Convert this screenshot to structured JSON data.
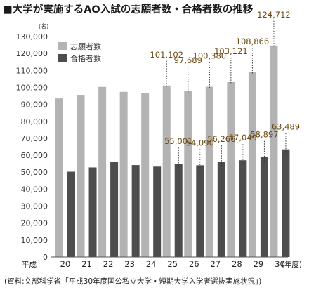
{
  "chart_data": {
    "type": "bar",
    "title": "■大学が実施するAO入試の志願者数・合格者数の推移",
    "unit": "(名)",
    "x_prefix": "平成",
    "x_suffix": "(年度)",
    "categories": [
      "20",
      "21",
      "22",
      "23",
      "24",
      "25",
      "26",
      "27",
      "28",
      "29",
      "30"
    ],
    "series": [
      {
        "name": "志願者数",
        "color": "#b3b3b3",
        "values": [
          93500,
          95200,
          100300,
          97400,
          96800,
          101102,
          97689,
          100380,
          103121,
          108866,
          124712
        ],
        "labels": [
          "",
          "",
          "",
          "",
          "",
          "101,102",
          "97,689",
          "100,380",
          "103,121",
          "108,866",
          "124,712"
        ]
      },
      {
        "name": "合格者数",
        "color": "#4d4d4d",
        "values": [
          50300,
          52800,
          55900,
          54200,
          53300,
          55001,
          54090,
          56266,
          57049,
          58897,
          63489
        ],
        "labels": [
          "",
          "",
          "",
          "",
          "",
          "55,001",
          "54,090",
          "56,266",
          "57,049",
          "58,897",
          "63,489"
        ]
      }
    ],
    "ylim": [
      0,
      130000
    ],
    "yticks": [
      "0",
      "10,000",
      "20,000",
      "30,000",
      "40,000",
      "50,000",
      "60,000",
      "70,000",
      "80,000",
      "90,000",
      "100,000",
      "110,000",
      "120,000",
      "130,000"
    ],
    "grid": false,
    "legend_position": "top-left"
  },
  "source": "(資料:文部科学省「平成30年度国公私立大学・短期大学入学者選抜実施状況」)"
}
